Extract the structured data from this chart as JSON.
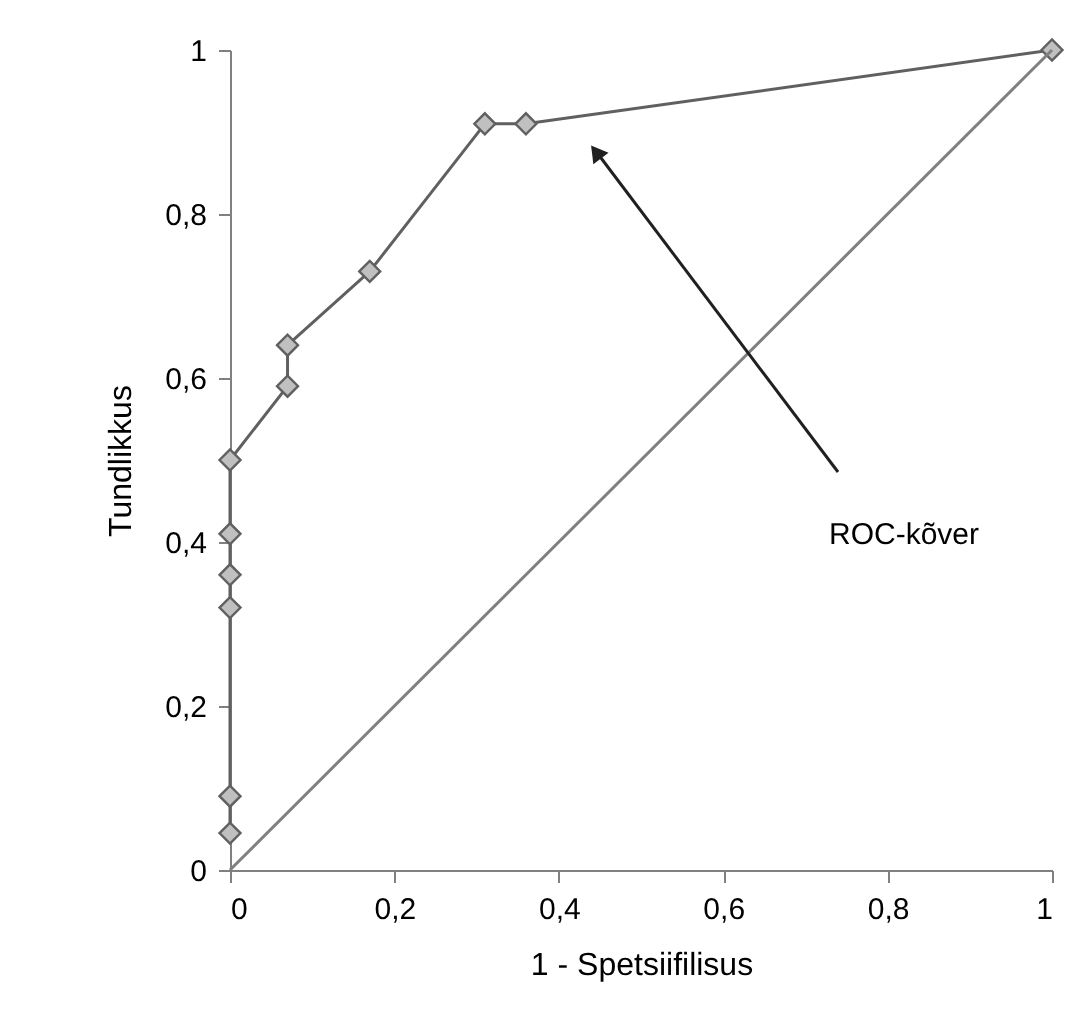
{
  "chart_data": {
    "type": "line",
    "xlabel": "1 - Spetsiifilisus",
    "ylabel": "Tundlikkus",
    "xlim": [
      0,
      1
    ],
    "ylim": [
      0,
      1
    ],
    "xticks": [
      0,
      {
        "value": 0.2,
        "label": "0,2"
      },
      {
        "value": 0.4,
        "label": "0,4"
      },
      {
        "value": 0.6,
        "label": "0,6"
      },
      {
        "value": 0.8,
        "label": "0,8"
      },
      1
    ],
    "yticks": [
      0,
      {
        "value": 0.2,
        "label": "0,2"
      },
      {
        "value": 0.4,
        "label": "0,4"
      },
      {
        "value": 0.6,
        "label": "0,6"
      },
      {
        "value": 0.8,
        "label": "0,8"
      },
      1
    ],
    "grid": false,
    "series": [
      {
        "color": "#606060",
        "marker": "diamond",
        "x": [
          0,
          0,
          0,
          0,
          0,
          0,
          0.07,
          0.07,
          0.17,
          0.31,
          0.36,
          1
        ],
        "values": [
          0.045,
          0.09,
          0.32,
          0.36,
          0.41,
          0.5,
          0.59,
          0.64,
          0.73,
          0.91,
          0.91,
          1
        ]
      },
      {
        "color": "#808080",
        "marker": "none",
        "x": [
          0,
          1
        ],
        "values": [
          0,
          1
        ]
      }
    ],
    "annotations": [
      "ROC-kõver"
    ]
  }
}
